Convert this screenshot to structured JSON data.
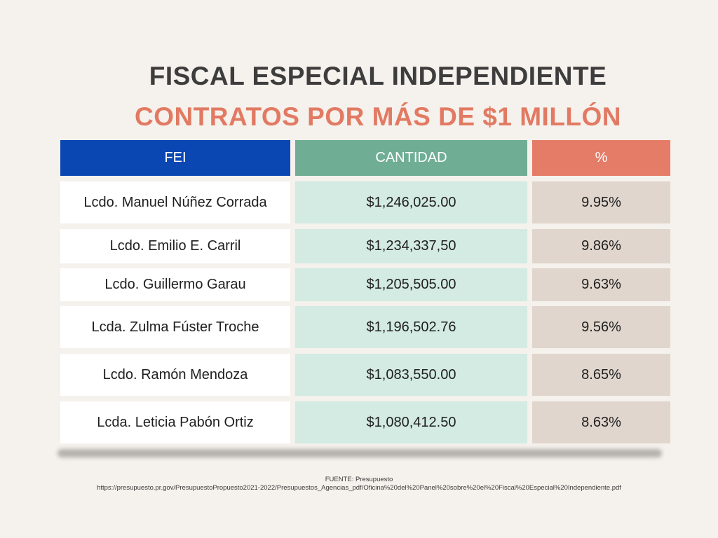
{
  "title": "FISCAL ESPECIAL INDEPENDIENTE",
  "subtitle": "CONTRATOS POR MÁS DE $1 MILLÓN",
  "table": {
    "headers": [
      "FEI",
      "CANTIDAD",
      "%"
    ],
    "rows": [
      {
        "name": "Lcdo. Manuel Núñez Corrada",
        "amount": "$1,246,025.00",
        "percent": "9.95%"
      },
      {
        "name": "Lcdo. Emilio E. Carril",
        "amount": "$1,234,337,50",
        "percent": "9.86%"
      },
      {
        "name": "Lcdo. Guillermo Garau",
        "amount": "$1,205,505.00",
        "percent": "9.63%"
      },
      {
        "name": "Lcda. Zulma Fúster Troche",
        "amount": "$1,196,502.76",
        "percent": "9.56%"
      },
      {
        "name": "Lcdo. Ramón Mendoza",
        "amount": "$1,083,550.00",
        "percent": "8.65%"
      },
      {
        "name": "Lcda. Leticia Pabón Ortiz",
        "amount": "$1,080,412.50",
        "percent": "8.63%"
      }
    ]
  },
  "source": {
    "label": "FUENTE: Presupuesto",
    "url": "https://presupuesto.pr.gov/PresupuestoPropuesto2021-2022/Presupuestos_Agencias_pdf/Oficina%20del%20Panel%20sobre%20el%20Fiscal%20Especial%20Independiente.pdf"
  },
  "colors": {
    "background": "#f5f1ec",
    "title": "#3d3d3d",
    "subtitle": "#e27a63",
    "header_fei": "#0a47b3",
    "header_cantidad": "#6fae94",
    "header_percent": "#e57c67",
    "cell_name": "#ffffff",
    "cell_amount": "#d3ebe2",
    "cell_percent": "#e0d6cd"
  }
}
